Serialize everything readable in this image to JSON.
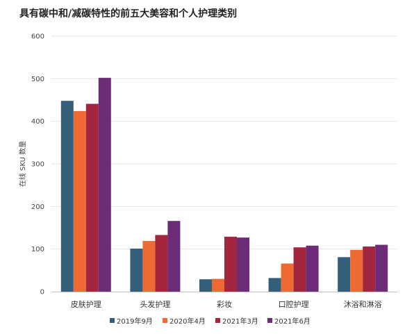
{
  "chart_data": {
    "type": "bar",
    "title": "具有碳中和/减碳特性的前五大美容和个人护理类别",
    "xlabel": "",
    "ylabel": "在线 SKU 数量",
    "ylim": [
      0,
      600
    ],
    "yticks": [
      0,
      100,
      200,
      300,
      400,
      500,
      600
    ],
    "grid": true,
    "legend_position": "bottom",
    "categories": [
      "皮肤护理",
      "头发护理",
      "彩妆",
      "口腔护理",
      "沐浴和淋浴"
    ],
    "series": [
      {
        "name": "2019年9月",
        "color": "#335f7a",
        "values": [
          448,
          101,
          29,
          32,
          81
        ]
      },
      {
        "name": "2020年4月",
        "color": "#ef6a32",
        "values": [
          424,
          119,
          30,
          66,
          98
        ]
      },
      {
        "name": "2021年3月",
        "color": "#a3263e",
        "values": [
          441,
          133,
          129,
          104,
          106
        ]
      },
      {
        "name": "2021年6月",
        "color": "#6d2c77",
        "values": [
          502,
          166,
          127,
          108,
          110
        ]
      }
    ]
  }
}
